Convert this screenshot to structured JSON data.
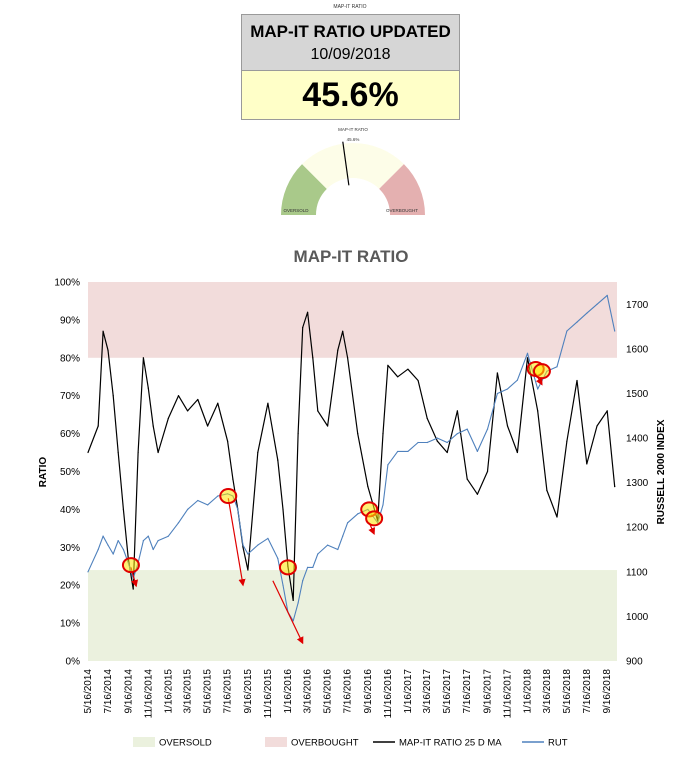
{
  "header": {
    "caption": "MAP-IT RATIO",
    "title": "MAP-IT RATIO UPDATED",
    "date": "10/09/2018",
    "value": "45.6%"
  },
  "gauge": {
    "caption": "MAP-IT RATIO",
    "value_text": "45.6%",
    "value": 45.6,
    "left_label": "OVERSOLD",
    "right_label": "OVERBOUGHT",
    "colors": {
      "oversold": "#a9c98a",
      "neutral": "#fdfde8",
      "overbought": "#e4b0b0",
      "needle": "#000000"
    }
  },
  "chart_data": {
    "type": "line",
    "title": "MAP-IT RATIO",
    "ylabel": "RATIO",
    "y2label": "RUSSELL 2000 INDEX",
    "ylim": [
      0,
      100
    ],
    "y2lim": [
      900,
      1750
    ],
    "yticks": [
      "0%",
      "10%",
      "20%",
      "30%",
      "40%",
      "50%",
      "60%",
      "70%",
      "80%",
      "90%",
      "100%"
    ],
    "y2ticks": [
      "900",
      "1000",
      "1100",
      "1200",
      "1300",
      "1400",
      "1500",
      "1600",
      "1700"
    ],
    "xticks": [
      "5/16/2014",
      "7/16/2014",
      "9/16/2014",
      "11/16/2014",
      "1/16/2015",
      "3/16/2015",
      "5/16/2015",
      "7/16/2015",
      "9/16/2015",
      "11/16/2015",
      "1/16/2016",
      "3/16/2016",
      "5/16/2016",
      "7/16/2016",
      "9/16/2016",
      "11/16/2016",
      "1/16/2017",
      "3/16/2017",
      "5/16/2017",
      "7/16/2017",
      "9/16/2017",
      "11/16/2017",
      "1/16/2018",
      "3/16/2018",
      "5/16/2018",
      "7/16/2018",
      "9/16/2018"
    ],
    "bands": [
      {
        "name": "OVERSOLD",
        "from": 0,
        "to": 24,
        "color": "#ebf1de"
      },
      {
        "name": "OVERBOUGHT",
        "from": 80,
        "to": 100,
        "color": "#f2dcdb"
      }
    ],
    "x": [
      "2014-05-16",
      "2014-06-16",
      "2014-07-01",
      "2014-07-16",
      "2014-08-01",
      "2014-08-16",
      "2014-09-01",
      "2014-09-16",
      "2014-10-01",
      "2014-10-16",
      "2014-11-01",
      "2014-11-16",
      "2014-12-01",
      "2014-12-16",
      "2015-01-16",
      "2015-02-16",
      "2015-03-16",
      "2015-04-16",
      "2015-05-16",
      "2015-06-16",
      "2015-07-16",
      "2015-08-01",
      "2015-08-16",
      "2015-09-01",
      "2015-09-16",
      "2015-10-16",
      "2015-11-16",
      "2015-12-16",
      "2016-01-01",
      "2016-01-16",
      "2016-02-01",
      "2016-02-16",
      "2016-03-01",
      "2016-03-16",
      "2016-04-01",
      "2016-04-16",
      "2016-05-16",
      "2016-06-16",
      "2016-07-01",
      "2016-07-16",
      "2016-08-16",
      "2016-09-16",
      "2016-10-16",
      "2016-11-01",
      "2016-11-16",
      "2016-12-16",
      "2017-01-16",
      "2017-02-16",
      "2017-03-16",
      "2017-04-16",
      "2017-05-16",
      "2017-06-16",
      "2017-07-16",
      "2017-08-16",
      "2017-09-16",
      "2017-10-16",
      "2017-11-16",
      "2017-12-16",
      "2018-01-16",
      "2018-02-16",
      "2018-03-16",
      "2018-04-16",
      "2018-05-16",
      "2018-06-16",
      "2018-07-16",
      "2018-08-16",
      "2018-09-16",
      "2018-10-09"
    ],
    "series": [
      {
        "name": "MAP-IT RATIO 25 D MA",
        "axis": "left",
        "color": "#000000",
        "values": [
          55,
          62,
          87,
          82,
          70,
          55,
          40,
          27,
          19,
          55,
          80,
          72,
          62,
          55,
          64,
          70,
          66,
          69,
          62,
          68,
          58,
          48,
          40,
          30,
          24,
          55,
          68,
          53,
          40,
          25,
          16,
          60,
          88,
          92,
          80,
          66,
          62,
          82,
          87,
          80,
          60,
          46,
          37,
          60,
          78,
          75,
          77,
          74,
          64,
          58,
          55,
          66,
          48,
          44,
          50,
          76,
          62,
          55,
          80,
          66,
          45,
          38,
          58,
          74,
          52,
          62,
          66,
          46
        ]
      },
      {
        "name": "RUT",
        "axis": "right",
        "color": "#4f81bd",
        "values": [
          1100,
          1150,
          1180,
          1160,
          1140,
          1170,
          1150,
          1120,
          1085,
          1120,
          1170,
          1180,
          1150,
          1170,
          1180,
          1210,
          1240,
          1260,
          1250,
          1270,
          1275,
          1270,
          1240,
          1160,
          1140,
          1160,
          1175,
          1130,
          1070,
          1010,
          990,
          1030,
          1080,
          1110,
          1110,
          1140,
          1160,
          1150,
          1180,
          1210,
          1230,
          1240,
          1210,
          1250,
          1340,
          1370,
          1370,
          1390,
          1390,
          1400,
          1390,
          1410,
          1420,
          1370,
          1420,
          1500,
          1510,
          1530,
          1590,
          1510,
          1550,
          1560,
          1640,
          1660,
          1680,
          1700,
          1720,
          1640
        ]
      }
    ],
    "markers": [
      {
        "x": "2014-09-24",
        "y": 1115
      },
      {
        "x": "2015-07-18",
        "y": 1270
      },
      {
        "x": "2016-01-16",
        "y": 1110
      },
      {
        "x": "2016-09-20",
        "y": 1240
      },
      {
        "x": "2016-10-05",
        "y": 1220
      },
      {
        "x": "2018-02-10",
        "y": 1555
      },
      {
        "x": "2018-03-01",
        "y": 1550
      }
    ],
    "arrows": [
      {
        "from": [
          "2014-09-24",
          1110
        ],
        "to": [
          "2014-10-10",
          1068
        ]
      },
      {
        "from": [
          "2015-07-18",
          1265
        ],
        "to": [
          "2015-09-01",
          1070
        ]
      },
      {
        "from": [
          "2015-12-01",
          1080
        ],
        "to": [
          "2016-03-01",
          940
        ]
      },
      {
        "from": [
          "2016-09-20",
          1210
        ],
        "to": [
          "2016-10-05",
          1185
        ]
      },
      {
        "from": [
          "2018-02-10",
          1545
        ],
        "to": [
          "2018-03-01",
          1520
        ]
      }
    ],
    "legend": [
      {
        "label": "OVERSOLD",
        "kind": "swatch",
        "color": "#ebf1de"
      },
      {
        "label": "OVERBOUGHT",
        "kind": "swatch",
        "color": "#f2dcdb"
      },
      {
        "label": "MAP-IT RATIO 25 D MA",
        "kind": "line",
        "color": "#000000"
      },
      {
        "label": "RUT",
        "kind": "line",
        "color": "#4f81bd"
      }
    ],
    "legend_position": "bottom",
    "marker_color": "#e00000",
    "marker_fill": "#ffe600",
    "arrow_color": "#e00000"
  }
}
